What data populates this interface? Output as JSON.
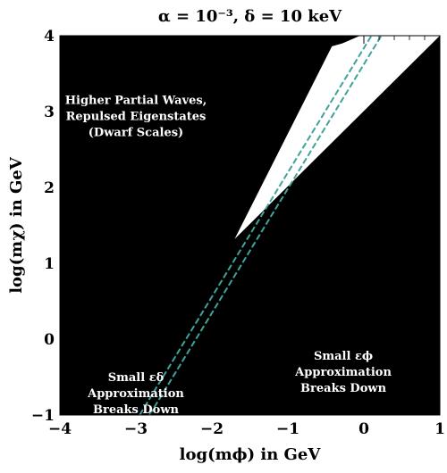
{
  "chart_data": {
    "type": "area",
    "title": "α = 10⁻³,  δ = 10 keV",
    "xlabel": "log(mϕ) in GeV",
    "ylabel": "log(mχ) in GeV",
    "xlim": [
      -4,
      1
    ],
    "ylim": [
      -1,
      4
    ],
    "x_ticks": [
      "−4",
      "−3",
      "−2",
      "−1",
      "0",
      "1"
    ],
    "y_ticks": [
      "−1",
      "0",
      "1",
      "2",
      "3",
      "4"
    ],
    "background_region_color": "#000000",
    "allowed_region": {
      "name": "",
      "color": "#ffffff",
      "polygon": [
        [
          -1.7,
          1.32
        ],
        [
          -0.42,
          3.86
        ],
        [
          -0.28,
          3.9
        ],
        [
          -0.05,
          4.0
        ],
        [
          1.0,
          4.0
        ]
      ]
    },
    "boundary_lines": [
      {
        "name": "",
        "color": "#3fa39b",
        "style": "dashed",
        "x": [
          -2.95,
          0.1
        ],
        "y": [
          -1.0,
          4.0
        ]
      },
      {
        "name": "",
        "color": "#3fa39b",
        "style": "dashed",
        "x": [
          -2.82,
          0.23
        ],
        "y": [
          -1.0,
          4.0
        ]
      }
    ],
    "annotations": [
      {
        "lines": [
          "Higher Partial Waves,",
          "Repulsed Eigenstates",
          "(Dwarf Scales)"
        ],
        "x": -3.0,
        "y": 3.1
      },
      {
        "lines": [
          "Small εδ",
          "Approximation",
          "Breaks Down"
        ],
        "x": -3.0,
        "y": -0.55
      },
      {
        "lines": [
          "Small εϕ",
          "Approximation",
          "Breaks Down"
        ],
        "x": -0.27,
        "y": -0.27
      }
    ]
  }
}
